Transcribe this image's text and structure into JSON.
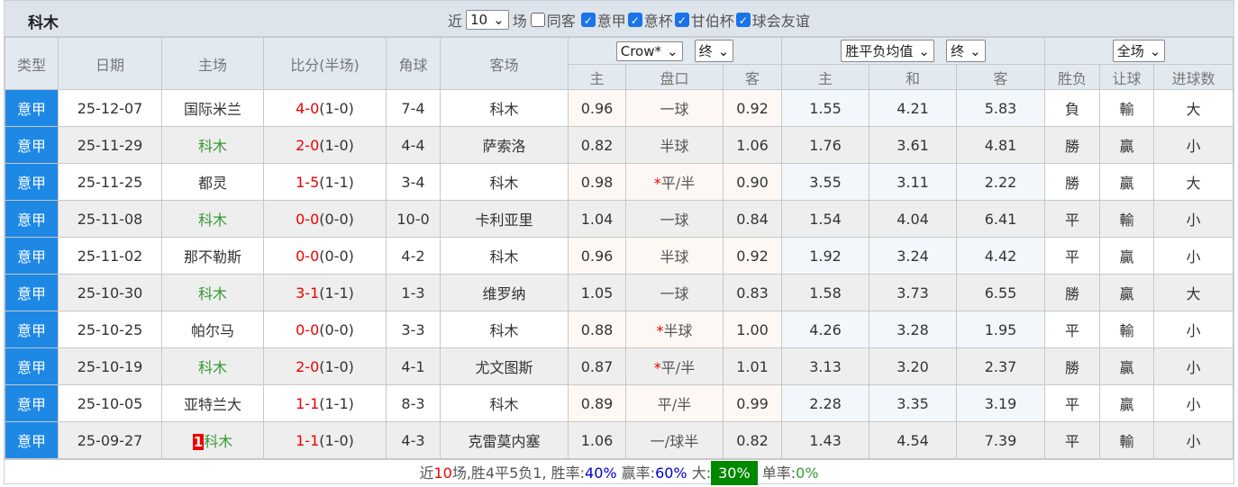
{
  "title": "科木",
  "filters": {
    "near_label": "近",
    "count": "10",
    "games_label": "场",
    "options": [
      {
        "label": "同客",
        "checked": false
      },
      {
        "label": "意甲",
        "checked": true
      },
      {
        "label": "意杯",
        "checked": true
      },
      {
        "label": "甘伯杯",
        "checked": true
      },
      {
        "label": "球会友谊",
        "checked": true
      }
    ]
  },
  "headers": {
    "type": "类型",
    "date": "日期",
    "home": "主场",
    "score": "比分(半场)",
    "corner": "角球",
    "away": "客场",
    "ah_company": "Crow*",
    "ah_stage": "终",
    "eu_company": "胜平负均值",
    "eu_stage": "终",
    "scope": "全场",
    "ah_home": "主",
    "ah_line": "盘口",
    "ah_away": "客",
    "eu_home": "主",
    "eu_draw": "和",
    "eu_away": "客",
    "result": "胜负",
    "handicap": "让球",
    "goals": "进球数"
  },
  "rows": [
    {
      "type": "意甲",
      "date": "25-12-07",
      "home": "国际米兰",
      "home_rank": "",
      "score": "4-0",
      "half": "(1-0)",
      "corner": "7-4",
      "away": "科木",
      "ah_home": "0.96",
      "ah_star": "",
      "ah_line": "一球",
      "ah_away": "0.92",
      "eu_home": "1.55",
      "eu_draw": "4.21",
      "eu_away": "5.83",
      "result": "負",
      "handicap": "輸",
      "goals": "大"
    },
    {
      "type": "意甲",
      "date": "25-11-29",
      "home": "科木",
      "home_rank": "",
      "score": "2-0",
      "half": "(1-0)",
      "corner": "4-4",
      "away": "萨索洛",
      "ah_home": "0.82",
      "ah_star": "",
      "ah_line": "半球",
      "ah_away": "1.06",
      "eu_home": "1.76",
      "eu_draw": "3.61",
      "eu_away": "4.81",
      "result": "勝",
      "handicap": "贏",
      "goals": "小"
    },
    {
      "type": "意甲",
      "date": "25-11-25",
      "home": "都灵",
      "home_rank": "",
      "score": "1-5",
      "half": "(1-1)",
      "corner": "3-4",
      "away": "科木",
      "ah_home": "0.98",
      "ah_star": "*",
      "ah_line": "平/半",
      "ah_away": "0.90",
      "eu_home": "3.55",
      "eu_draw": "3.11",
      "eu_away": "2.22",
      "result": "勝",
      "handicap": "贏",
      "goals": "大"
    },
    {
      "type": "意甲",
      "date": "25-11-08",
      "home": "科木",
      "home_rank": "",
      "score": "0-0",
      "half": "(0-0)",
      "corner": "10-0",
      "away": "卡利亚里",
      "ah_home": "1.04",
      "ah_star": "",
      "ah_line": "一球",
      "ah_away": "0.84",
      "eu_home": "1.54",
      "eu_draw": "4.04",
      "eu_away": "6.41",
      "result": "平",
      "handicap": "輸",
      "goals": "小"
    },
    {
      "type": "意甲",
      "date": "25-11-02",
      "home": "那不勒斯",
      "home_rank": "",
      "score": "0-0",
      "half": "(0-0)",
      "corner": "4-2",
      "away": "科木",
      "ah_home": "0.96",
      "ah_star": "",
      "ah_line": "半球",
      "ah_away": "0.92",
      "eu_home": "1.92",
      "eu_draw": "3.24",
      "eu_away": "4.42",
      "result": "平",
      "handicap": "贏",
      "goals": "小"
    },
    {
      "type": "意甲",
      "date": "25-10-30",
      "home": "科木",
      "home_rank": "",
      "score": "3-1",
      "half": "(1-1)",
      "corner": "1-3",
      "away": "维罗纳",
      "ah_home": "1.05",
      "ah_star": "",
      "ah_line": "一球",
      "ah_away": "0.83",
      "eu_home": "1.58",
      "eu_draw": "3.73",
      "eu_away": "6.55",
      "result": "勝",
      "handicap": "贏",
      "goals": "大"
    },
    {
      "type": "意甲",
      "date": "25-10-25",
      "home": "帕尔马",
      "home_rank": "",
      "score": "0-0",
      "half": "(0-0)",
      "corner": "3-3",
      "away": "科木",
      "ah_home": "0.88",
      "ah_star": "*",
      "ah_line": "半球",
      "ah_away": "1.00",
      "eu_home": "4.26",
      "eu_draw": "3.28",
      "eu_away": "1.95",
      "result": "平",
      "handicap": "輸",
      "goals": "小"
    },
    {
      "type": "意甲",
      "date": "25-10-19",
      "home": "科木",
      "home_rank": "",
      "score": "2-0",
      "half": "(1-0)",
      "corner": "4-1",
      "away": "尤文图斯",
      "ah_home": "0.87",
      "ah_star": "*",
      "ah_line": "平/半",
      "ah_away": "1.01",
      "eu_home": "3.13",
      "eu_draw": "3.20",
      "eu_away": "2.37",
      "result": "勝",
      "handicap": "贏",
      "goals": "小"
    },
    {
      "type": "意甲",
      "date": "25-10-05",
      "home": "亚特兰大",
      "home_rank": "",
      "score": "1-1",
      "half": "(1-1)",
      "corner": "8-3",
      "away": "科木",
      "ah_home": "0.89",
      "ah_star": "",
      "ah_line": "平/半",
      "ah_away": "0.99",
      "eu_home": "2.28",
      "eu_draw": "3.35",
      "eu_away": "3.19",
      "result": "平",
      "handicap": "贏",
      "goals": "小"
    },
    {
      "type": "意甲",
      "date": "25-09-27",
      "home": "科木",
      "home_rank": "1",
      "score": "1-1",
      "half": "(1-0)",
      "corner": "4-3",
      "away": "克雷莫内塞",
      "ah_home": "1.06",
      "ah_star": "",
      "ah_line": "一/球半",
      "ah_away": "0.82",
      "eu_home": "1.43",
      "eu_draw": "4.54",
      "eu_away": "7.39",
      "result": "平",
      "handicap": "輸",
      "goals": "小"
    }
  ],
  "summary": {
    "p1": "近",
    "n": "10",
    "p2": "场,胜4平5负1, 胜率:",
    "win_rate": "40%",
    "p3": " 赢率:",
    "cover_rate": "60%",
    "p4": " 大:",
    "over_rate": "30%",
    "p5": " 单率:",
    "odd_rate": "0%"
  },
  "colors": {
    "team": "#339933",
    "type_bg": "#1e88e5",
    "win": "#ff5555",
    "draw": "#2222ee",
    "loss": "#339933"
  }
}
